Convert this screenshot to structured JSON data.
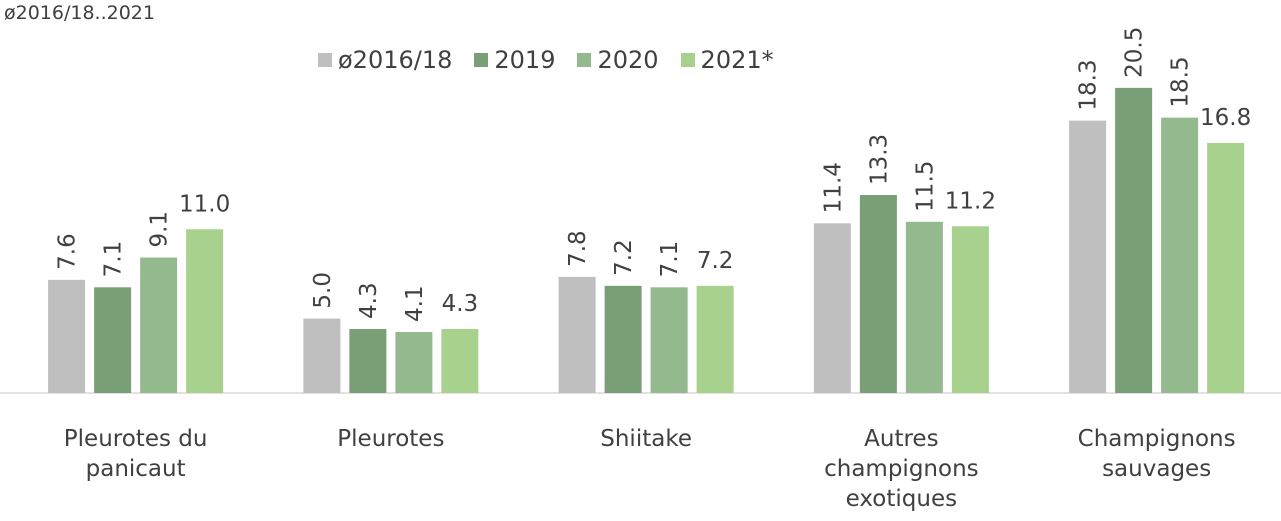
{
  "chart_data": {
    "type": "bar",
    "subtitle": "ø2016/18..2021",
    "categories": [
      "Pleurotes du panicaut",
      "Pleurotes",
      "Shiitake",
      "Autres champignons exotiques",
      "Champignons sauvages"
    ],
    "series": [
      {
        "name": "ø2016/18",
        "color": "#bfbfbf",
        "values": [
          7.6,
          5.0,
          7.8,
          11.4,
          18.3
        ],
        "value_labels": [
          "7.6",
          "5.0",
          "7.8",
          "11.4",
          "18.3"
        ]
      },
      {
        "name": "2019",
        "color": "#7a9e75",
        "values": [
          7.1,
          4.3,
          7.2,
          13.3,
          20.5
        ],
        "value_labels": [
          "7.1",
          "4.3",
          "7.2",
          "13.3",
          "20.5"
        ]
      },
      {
        "name": "2020",
        "color": "#94b98f",
        "values": [
          9.1,
          4.1,
          7.1,
          11.5,
          18.5
        ],
        "value_labels": [
          "9.1",
          "4.1",
          "7.1",
          "11.5",
          "18.5"
        ]
      },
      {
        "name": "2021*",
        "color": "#a9d18e",
        "values": [
          11.0,
          4.3,
          7.2,
          11.2,
          16.8
        ],
        "value_labels": [
          "11.0",
          "4.3",
          "7.2",
          "11.2",
          "16.8"
        ]
      }
    ],
    "ylim": [
      0,
      26
    ],
    "legend": "top"
  }
}
